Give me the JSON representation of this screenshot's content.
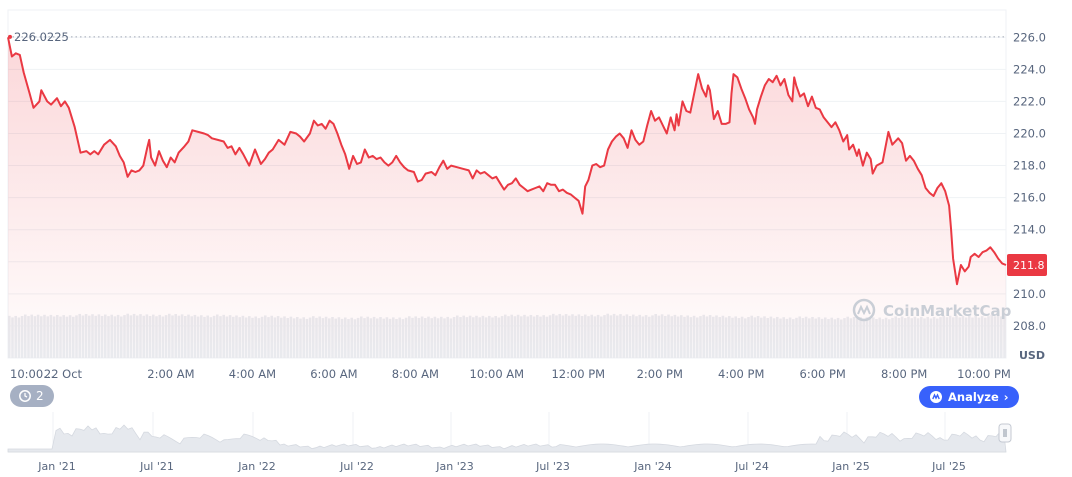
{
  "chart_data": {
    "type": "line",
    "title": "",
    "xlabel": "",
    "ylabel": "",
    "currency_label": "USD",
    "ylim": [
      206.0,
      227.7
    ],
    "y_ticks": [
      "226.0",
      "224.0",
      "222.0",
      "220.0",
      "218.0",
      "216.0",
      "214.0",
      "212.0",
      "210.0",
      "208.0"
    ],
    "x_ticks": [
      "10:00...",
      "22 Oct",
      "2:00 AM",
      "4:00 AM",
      "6:00 AM",
      "8:00 AM",
      "10:00 AM",
      "12:00 PM",
      "2:00 PM",
      "4:00 PM",
      "6:00 PM",
      "8:00 PM",
      "10:00 PM"
    ],
    "x_tick_hours": [
      0,
      1.35,
      4,
      6,
      8,
      10,
      12,
      14,
      16,
      18,
      20,
      22,
      24
    ],
    "x_range_hours": [
      0,
      24.5
    ],
    "series": [
      {
        "points": [
          [
            0.0,
            226.0
          ],
          [
            0.1,
            224.8
          ],
          [
            0.2,
            225.0
          ],
          [
            0.3,
            224.9
          ],
          [
            0.4,
            223.8
          ],
          [
            0.55,
            222.5
          ],
          [
            0.65,
            221.6
          ],
          [
            0.8,
            222.0
          ],
          [
            0.85,
            222.7
          ],
          [
            1.0,
            222.0
          ],
          [
            1.1,
            221.8
          ],
          [
            1.25,
            222.2
          ],
          [
            1.35,
            221.7
          ],
          [
            1.45,
            222.0
          ],
          [
            1.55,
            221.6
          ],
          [
            1.7,
            220.4
          ],
          [
            1.85,
            218.8
          ],
          [
            2.0,
            218.9
          ],
          [
            2.1,
            218.7
          ],
          [
            2.2,
            218.9
          ],
          [
            2.3,
            218.7
          ],
          [
            2.45,
            219.3
          ],
          [
            2.6,
            219.6
          ],
          [
            2.75,
            219.2
          ],
          [
            2.85,
            218.6
          ],
          [
            2.95,
            218.2
          ],
          [
            3.05,
            217.3
          ],
          [
            3.15,
            217.7
          ],
          [
            3.25,
            217.6
          ],
          [
            3.35,
            217.7
          ],
          [
            3.45,
            218.0
          ],
          [
            3.55,
            219.1
          ],
          [
            3.6,
            219.6
          ],
          [
            3.65,
            218.5
          ],
          [
            3.75,
            218.0
          ],
          [
            3.85,
            218.9
          ],
          [
            3.95,
            218.3
          ],
          [
            4.05,
            217.9
          ],
          [
            4.15,
            218.5
          ],
          [
            4.25,
            218.2
          ],
          [
            4.35,
            218.8
          ],
          [
            4.5,
            219.2
          ],
          [
            4.6,
            219.5
          ],
          [
            4.7,
            220.2
          ],
          [
            4.85,
            220.1
          ],
          [
            5.0,
            220.0
          ],
          [
            5.1,
            219.9
          ],
          [
            5.2,
            219.7
          ],
          [
            5.35,
            219.6
          ],
          [
            5.5,
            219.5
          ],
          [
            5.6,
            219.1
          ],
          [
            5.7,
            219.2
          ],
          [
            5.8,
            218.7
          ],
          [
            5.9,
            219.1
          ],
          [
            6.0,
            218.7
          ],
          [
            6.15,
            218.0
          ],
          [
            6.3,
            219.0
          ],
          [
            6.45,
            218.1
          ],
          [
            6.55,
            218.4
          ],
          [
            6.65,
            218.8
          ],
          [
            6.75,
            219.0
          ],
          [
            6.9,
            219.6
          ],
          [
            7.05,
            219.3
          ],
          [
            7.2,
            220.1
          ],
          [
            7.35,
            220.0
          ],
          [
            7.45,
            219.8
          ],
          [
            7.55,
            219.5
          ],
          [
            7.7,
            220.0
          ],
          [
            7.8,
            220.8
          ],
          [
            7.9,
            220.5
          ],
          [
            8.0,
            220.6
          ],
          [
            8.1,
            220.3
          ],
          [
            8.2,
            220.8
          ],
          [
            8.3,
            220.6
          ],
          [
            8.4,
            220.0
          ],
          [
            8.5,
            219.3
          ],
          [
            8.6,
            218.7
          ],
          [
            8.7,
            217.8
          ],
          [
            8.8,
            218.6
          ],
          [
            8.9,
            218.1
          ],
          [
            9.0,
            218.2
          ],
          [
            9.1,
            219.0
          ],
          [
            9.2,
            218.5
          ],
          [
            9.3,
            218.6
          ],
          [
            9.4,
            218.4
          ],
          [
            9.5,
            218.5
          ],
          [
            9.6,
            218.2
          ],
          [
            9.7,
            218.0
          ],
          [
            9.8,
            218.2
          ],
          [
            9.9,
            218.6
          ],
          [
            10.0,
            218.2
          ],
          [
            10.1,
            217.9
          ],
          [
            10.2,
            217.7
          ],
          [
            10.35,
            217.6
          ],
          [
            10.45,
            217.0
          ],
          [
            10.55,
            217.1
          ],
          [
            10.65,
            217.5
          ],
          [
            10.8,
            217.6
          ],
          [
            10.9,
            217.4
          ],
          [
            11.0,
            217.9
          ],
          [
            11.1,
            218.3
          ],
          [
            11.2,
            217.8
          ],
          [
            11.3,
            218.0
          ],
          [
            11.45,
            217.9
          ],
          [
            11.6,
            217.8
          ],
          [
            11.75,
            217.7
          ],
          [
            11.85,
            217.2
          ],
          [
            11.95,
            217.7
          ],
          [
            12.05,
            217.5
          ],
          [
            12.15,
            217.6
          ],
          [
            12.25,
            217.4
          ],
          [
            12.35,
            217.2
          ],
          [
            12.45,
            217.3
          ],
          [
            12.55,
            216.9
          ],
          [
            12.65,
            216.5
          ],
          [
            12.75,
            216.8
          ],
          [
            12.85,
            216.9
          ],
          [
            12.95,
            217.2
          ],
          [
            13.05,
            216.8
          ],
          [
            13.15,
            216.6
          ],
          [
            13.25,
            216.4
          ],
          [
            13.35,
            216.5
          ],
          [
            13.45,
            216.6
          ],
          [
            13.55,
            216.7
          ],
          [
            13.65,
            216.4
          ],
          [
            13.75,
            216.9
          ],
          [
            13.85,
            216.8
          ],
          [
            13.95,
            216.8
          ],
          [
            14.05,
            216.4
          ],
          [
            14.15,
            216.5
          ],
          [
            14.25,
            216.3
          ],
          [
            14.35,
            216.2
          ],
          [
            14.45,
            216.0
          ],
          [
            14.55,
            215.8
          ],
          [
            14.65,
            215.0
          ],
          [
            14.72,
            216.7
          ],
          [
            14.8,
            217.1
          ],
          [
            14.9,
            218.0
          ],
          [
            15.0,
            218.1
          ],
          [
            15.1,
            217.9
          ],
          [
            15.2,
            218.0
          ],
          [
            15.3,
            219.0
          ],
          [
            15.4,
            219.5
          ],
          [
            15.5,
            219.8
          ],
          [
            15.6,
            220.0
          ],
          [
            15.7,
            219.7
          ],
          [
            15.8,
            219.1
          ],
          [
            15.9,
            220.2
          ],
          [
            16.0,
            219.6
          ],
          [
            16.1,
            219.3
          ],
          [
            16.2,
            219.5
          ],
          [
            16.3,
            220.5
          ],
          [
            16.4,
            221.4
          ],
          [
            16.5,
            220.8
          ],
          [
            16.6,
            221.0
          ],
          [
            16.7,
            220.5
          ],
          [
            16.8,
            220.0
          ],
          [
            16.9,
            221.0
          ],
          [
            17.0,
            220.2
          ],
          [
            17.05,
            221.2
          ],
          [
            17.1,
            220.5
          ],
          [
            17.2,
            222.0
          ],
          [
            17.3,
            221.4
          ],
          [
            17.4,
            221.3
          ],
          [
            17.5,
            222.5
          ],
          [
            17.6,
            223.7
          ],
          [
            17.7,
            222.8
          ],
          [
            17.8,
            222.3
          ],
          [
            17.85,
            223.0
          ],
          [
            17.9,
            222.7
          ],
          [
            18.0,
            220.9
          ],
          [
            18.1,
            221.4
          ],
          [
            18.2,
            220.6
          ],
          [
            18.3,
            220.6
          ],
          [
            18.4,
            220.7
          ],
          [
            18.45,
            222.5
          ],
          [
            18.5,
            223.7
          ],
          [
            18.6,
            223.5
          ],
          [
            18.7,
            222.8
          ],
          [
            18.8,
            222.2
          ],
          [
            18.9,
            221.5
          ],
          [
            19.0,
            221.0
          ],
          [
            19.05,
            220.6
          ],
          [
            19.1,
            221.5
          ],
          [
            19.2,
            222.3
          ],
          [
            19.3,
            223.0
          ],
          [
            19.4,
            223.4
          ],
          [
            19.5,
            223.2
          ],
          [
            19.6,
            223.6
          ],
          [
            19.7,
            223.0
          ],
          [
            19.8,
            223.4
          ],
          [
            19.9,
            222.4
          ],
          [
            20.0,
            222.0
          ],
          [
            20.05,
            223.5
          ],
          [
            20.1,
            223.0
          ],
          [
            20.2,
            222.3
          ],
          [
            20.3,
            222.5
          ],
          [
            20.4,
            221.7
          ],
          [
            20.5,
            222.3
          ],
          [
            20.6,
            221.6
          ],
          [
            20.7,
            221.5
          ],
          [
            20.8,
            221.0
          ],
          [
            20.9,
            220.7
          ],
          [
            21.0,
            220.4
          ],
          [
            21.1,
            220.7
          ],
          [
            21.2,
            220.2
          ],
          [
            21.3,
            219.5
          ],
          [
            21.4,
            219.9
          ],
          [
            21.45,
            219.0
          ],
          [
            21.55,
            219.3
          ],
          [
            21.65,
            218.6
          ],
          [
            21.7,
            219.0
          ],
          [
            21.8,
            218.0
          ],
          [
            21.9,
            218.8
          ],
          [
            22.0,
            218.4
          ],
          [
            22.05,
            217.5
          ],
          [
            22.15,
            218.0
          ],
          [
            22.3,
            218.2
          ],
          [
            22.45,
            220.1
          ],
          [
            22.55,
            219.3
          ],
          [
            22.7,
            219.7
          ],
          [
            22.8,
            219.4
          ],
          [
            22.9,
            218.3
          ],
          [
            23.0,
            218.6
          ],
          [
            23.1,
            218.3
          ],
          [
            23.2,
            217.8
          ],
          [
            23.3,
            217.4
          ],
          [
            23.4,
            216.6
          ],
          [
            23.5,
            216.3
          ],
          [
            23.6,
            216.1
          ],
          [
            23.7,
            216.6
          ],
          [
            23.8,
            216.9
          ],
          [
            23.9,
            216.4
          ],
          [
            24.0,
            215.5
          ],
          [
            24.05,
            214.0
          ],
          [
            24.1,
            212.2
          ],
          [
            24.2,
            210.6
          ],
          [
            24.3,
            211.8
          ],
          [
            24.4,
            211.4
          ],
          [
            24.5,
            211.7
          ],
          [
            24.55,
            212.3
          ],
          [
            24.65,
            212.5
          ],
          [
            24.75,
            212.3
          ],
          [
            24.85,
            212.6
          ],
          [
            24.95,
            212.7
          ],
          [
            25.05,
            212.9
          ],
          [
            25.15,
            212.6
          ],
          [
            25.25,
            212.2
          ],
          [
            25.35,
            211.9
          ],
          [
            25.45,
            211.8
          ]
        ]
      }
    ],
    "reference_line_label": "226.0225",
    "reference_value": 226.0225,
    "current_price_label": "211.8",
    "current_value": 211.8,
    "watermark": "CoinMarketCap",
    "navigator_ticks": [
      "Jan '21",
      "Jul '21",
      "Jan '22",
      "Jul '22",
      "Jan '23",
      "Jul '23",
      "Jan '24",
      "Jul '24",
      "Jan '25",
      "Jul '25"
    ],
    "colors": {
      "line": "#ea3943",
      "fill": "#ea3943",
      "badge": "#ea3943",
      "analyze": "#3861fb"
    }
  },
  "controls": {
    "history_count": "2",
    "analyze_label": "Analyze"
  }
}
